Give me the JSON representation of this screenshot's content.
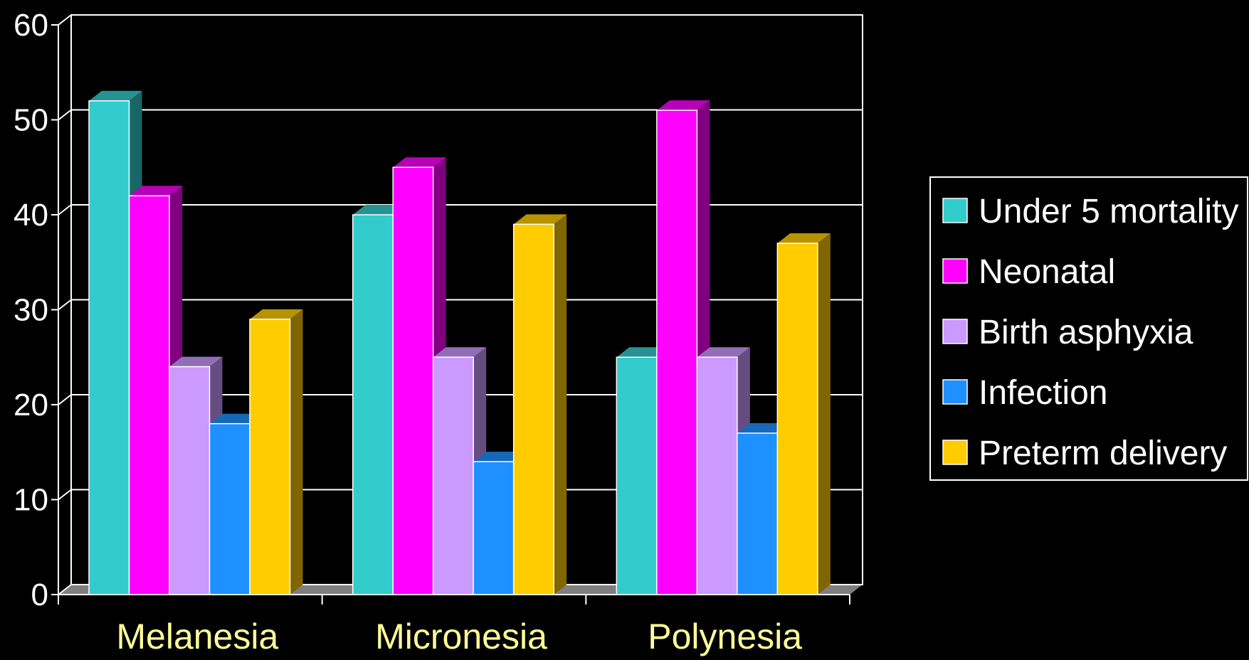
{
  "chart_data": {
    "type": "bar",
    "categories": [
      "Melanesia",
      "Micronesia",
      "Polynesia"
    ],
    "series": [
      {
        "name": "Under 5 mortality",
        "color": "#33cccc",
        "values": [
          52,
          40,
          25
        ]
      },
      {
        "name": "Neonatal",
        "color": "#ff00ff",
        "values": [
          42,
          45,
          51
        ]
      },
      {
        "name": "Birth asphyxia",
        "color": "#cc99ff",
        "values": [
          24,
          25,
          25
        ]
      },
      {
        "name": "Infection",
        "color": "#1e90ff",
        "values": [
          18,
          14,
          17
        ]
      },
      {
        "name": "Preterm delivery",
        "color": "#ffcc00",
        "values": [
          29,
          39,
          37
        ]
      }
    ],
    "yticks": [
      "0",
      "10",
      "20",
      "30",
      "40",
      "50",
      "60"
    ],
    "ylim": [
      0,
      60
    ],
    "grid": true,
    "legend_position": "right",
    "background": "#000000",
    "category_label_color": "#ffff99"
  }
}
